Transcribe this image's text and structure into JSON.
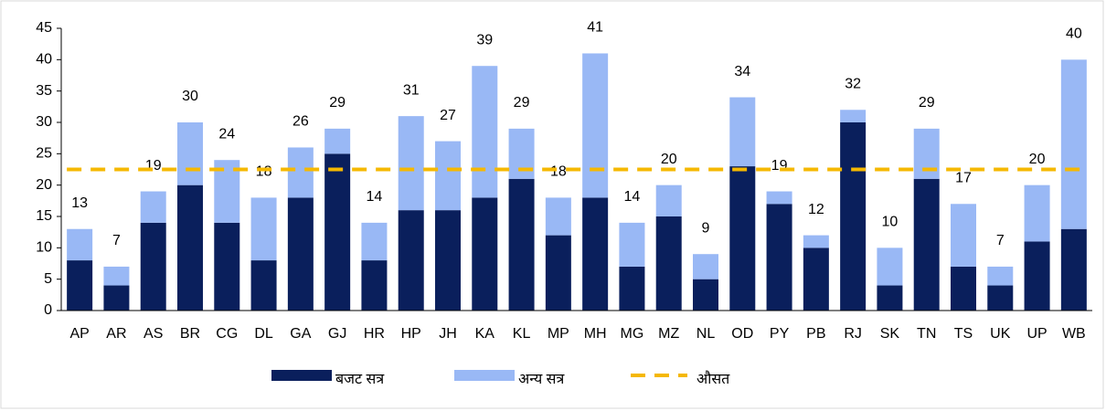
{
  "chart_data": {
    "type": "stacked_bar",
    "categories": [
      "AP",
      "AR",
      "AS",
      "BR",
      "CG",
      "DL",
      "GA",
      "GJ",
      "HR",
      "HP",
      "JH",
      "KA",
      "KL",
      "MP",
      "MH",
      "MG",
      "MZ",
      "NL",
      "OD",
      "PY",
      "PB",
      "RJ",
      "SK",
      "TN",
      "TS",
      "UK",
      "UP",
      "WB"
    ],
    "series": [
      {
        "name": "बजट सत्र",
        "color": "#0a1f5c",
        "values": [
          8,
          4,
          14,
          20,
          14,
          8,
          18,
          25,
          8,
          16,
          16,
          18,
          21,
          12,
          18,
          7,
          15,
          5,
          23,
          17,
          10,
          30,
          4,
          21,
          7,
          4,
          11,
          13
        ]
      },
      {
        "name": "अन्य सत्र",
        "color": "#99b8f5",
        "values": [
          5,
          3,
          5,
          10,
          10,
          10,
          8,
          4,
          6,
          15,
          11,
          21,
          8,
          6,
          23,
          7,
          5,
          4,
          11,
          2,
          2,
          2,
          6,
          8,
          10,
          3,
          9,
          27
        ]
      }
    ],
    "totals": [
      13,
      7,
      19,
      30,
      24,
      18,
      26,
      29,
      14,
      31,
      27,
      39,
      29,
      18,
      41,
      14,
      20,
      9,
      34,
      19,
      12,
      32,
      10,
      29,
      17,
      7,
      20,
      40
    ],
    "average": {
      "name": "औसत",
      "color": "#f5b800",
      "value": 22.5
    },
    "ylim": [
      0,
      45
    ],
    "yticks": [
      0,
      5,
      10,
      15,
      20,
      25,
      30,
      35,
      40,
      45
    ]
  }
}
